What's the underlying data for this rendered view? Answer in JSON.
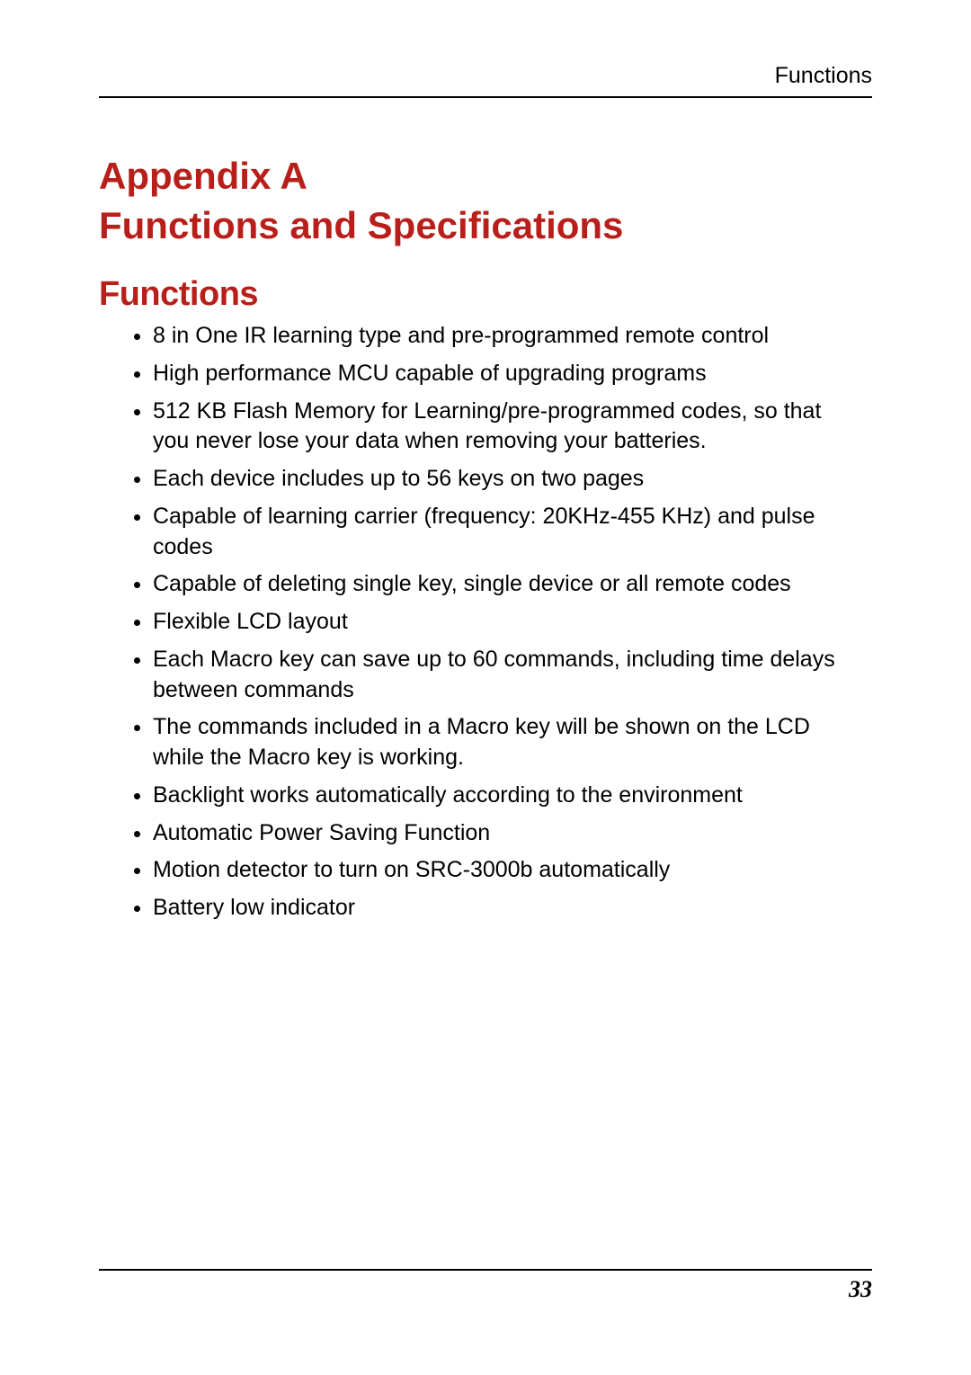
{
  "colors": {
    "heading": "#b91f1a",
    "text": "#000000",
    "rule": "#000000",
    "background": "#ffffff"
  },
  "typography": {
    "body_font": "Century Gothic",
    "heading_font": "Arial Black",
    "body_size_pt": 19,
    "title_size_pt": 32,
    "section_size_pt": 29
  },
  "header": {
    "running_title": "Functions"
  },
  "title": {
    "line1": "Appendix A",
    "line2": "Functions and Specifications"
  },
  "section": {
    "heading": "Functions",
    "items": [
      "8 in One IR learning type and pre-programmed remote control",
      "High performance MCU capable of upgrading programs",
      "512 KB Flash Memory for Learning/pre-programmed codes, so that you never lose your data when removing your batteries.",
      "Each device includes up to 56 keys on two pages",
      "Capable of learning carrier (frequency: 20KHz-455 KHz) and pulse codes",
      "Capable of deleting single key, single device or all remote codes",
      "Flexible LCD layout",
      "Each Macro key can save up to 60 commands, including time delays between commands",
      "The commands included in a Macro key will be shown on the LCD while the Macro key is working.",
      "Backlight works automatically according to the environment",
      "Automatic Power Saving Function",
      "Motion detector to turn on SRC-3000b automatically",
      "Battery low indicator"
    ]
  },
  "footer": {
    "page_number": "33"
  }
}
